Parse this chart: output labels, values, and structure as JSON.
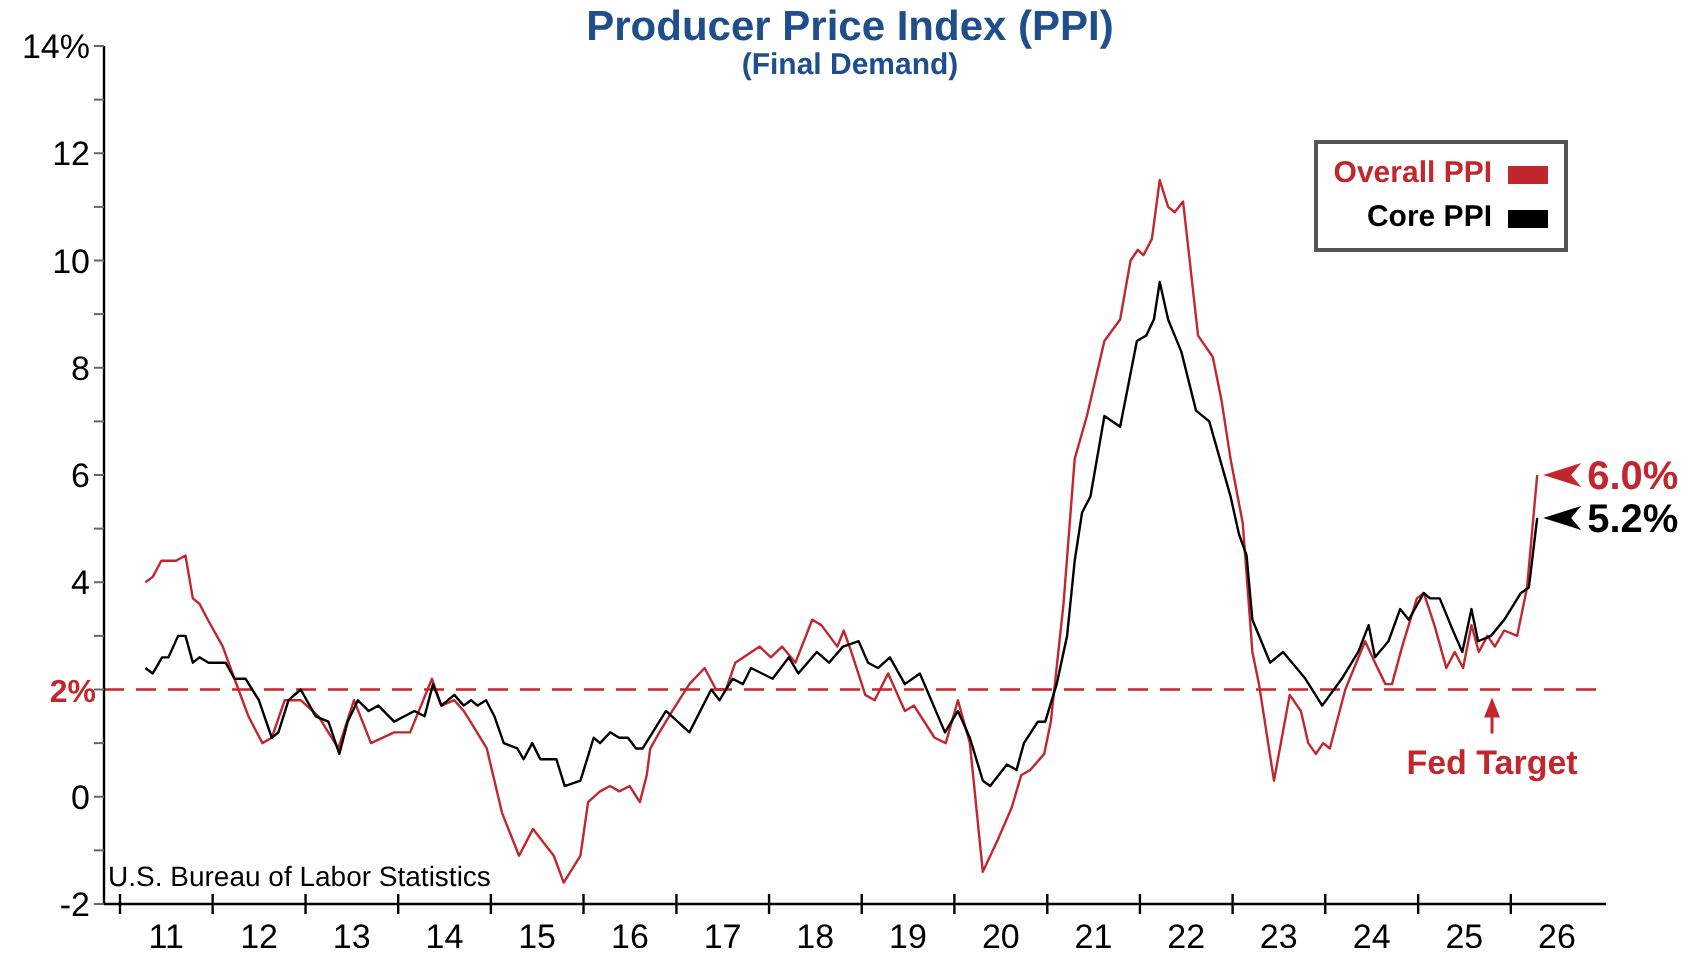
{
  "chart_data": {
    "type": "line",
    "title": "Producer Price Index (PPI)",
    "subtitle": "(Final Demand)",
    "xlim": [
      "2010-10-30",
      "2027-01-11"
    ],
    "xticks": [
      {
        "value": "2011-01-01",
        "label": null
      },
      {
        "value": "2011-07-02",
        "label": "11"
      },
      {
        "value": "2012-01-01",
        "label": null
      },
      {
        "value": "2012-07-02",
        "label": "12"
      },
      {
        "value": "2013-01-01",
        "label": null
      },
      {
        "value": "2013-07-02",
        "label": "13"
      },
      {
        "value": "2014-01-01",
        "label": null
      },
      {
        "value": "2014-07-02",
        "label": "14"
      },
      {
        "value": "2015-01-01",
        "label": null
      },
      {
        "value": "2015-07-02",
        "label": "15"
      },
      {
        "value": "2016-01-01",
        "label": null
      },
      {
        "value": "2016-07-02",
        "label": "16"
      },
      {
        "value": "2017-01-01",
        "label": null
      },
      {
        "value": "2017-07-02",
        "label": "17"
      },
      {
        "value": "2018-01-01",
        "label": null
      },
      {
        "value": "2018-07-02",
        "label": "18"
      },
      {
        "value": "2019-01-01",
        "label": null
      },
      {
        "value": "2019-07-02",
        "label": "19"
      },
      {
        "value": "2020-01-01",
        "label": null
      },
      {
        "value": "2020-07-02",
        "label": "20"
      },
      {
        "value": "2021-01-01",
        "label": null
      },
      {
        "value": "2021-07-02",
        "label": "21"
      },
      {
        "value": "2022-01-01",
        "label": null
      },
      {
        "value": "2022-07-02",
        "label": "22"
      },
      {
        "value": "2023-01-01",
        "label": null
      },
      {
        "value": "2023-07-02",
        "label": "23"
      },
      {
        "value": "2024-01-01",
        "label": null
      },
      {
        "value": "2024-07-02",
        "label": "24"
      },
      {
        "value": "2025-01-01",
        "label": null
      },
      {
        "value": "2025-07-02",
        "label": "25"
      },
      {
        "value": "2026-01-01",
        "label": null
      },
      {
        "value": "2026-07-02",
        "label": "26"
      }
    ],
    "ylim": [
      -2,
      14
    ],
    "yticks": [
      -2,
      {
        "value": -1,
        "label": null
      },
      0,
      {
        "value": 1,
        "label": null
      },
      {
        "value": 2,
        "label": null
      },
      {
        "value": 3,
        "label": null
      },
      4,
      {
        "value": 5,
        "label": null
      },
      6,
      {
        "value": 7,
        "label": null
      },
      8,
      {
        "value": 9,
        "label": null
      },
      10,
      {
        "value": 11,
        "label": null
      },
      12,
      {
        "value": 13,
        "label": null
      },
      {
        "value": 14,
        "label": "14%"
      }
    ],
    "marker": "none",
    "legend": "top right",
    "series": [
      {
        "name": "Overall PPI",
        "color": "#c1272d",
        "x": [
          "2011-04-11",
          "2011-05-10",
          "2011-06-13",
          "2011-08-10",
          "2011-09-16",
          "2011-10-15",
          "2011-11-10",
          "2011-12-13",
          "2012-02-10",
          "2012-03-27",
          "2012-05-21",
          "2012-07-15",
          "2012-08-21",
          "2012-10-11",
          "2012-12-13",
          "2013-02-21",
          "2013-05-10",
          "2013-07-11",
          "2013-09-16",
          "2013-12-16",
          "2014-02-17",
          "2014-05-14",
          "2014-06-20",
          "2014-08-10",
          "2014-09-16",
          "2014-10-26",
          "2014-12-16",
          "2015-02-14",
          "2015-04-22",
          "2015-06-16",
          "2015-09-06",
          "2015-10-15",
          "2015-12-20",
          "2016-01-19",
          "2016-03-06",
          "2016-04-15",
          "2016-05-21",
          "2016-07-01",
          "2016-08-10",
          "2016-09-06",
          "2016-09-20",
          "2016-10-26",
          "2016-12-16",
          "2017-02-21",
          "2017-04-22",
          "2017-06-06",
          "2017-07-15",
          "2017-08-21",
          "2017-11-25",
          "2018-01-08",
          "2018-02-21",
          "2018-04-15",
          "2018-06-20",
          "2018-07-26",
          "2018-09-27",
          "2018-10-22",
          "2018-11-21",
          "2019-01-15",
          "2019-02-21",
          "2019-04-15",
          "2019-06-20",
          "2019-07-26",
          "2019-10-15",
          "2019-11-28",
          "2020-01-15",
          "2020-03-02",
          "2020-04-22",
          "2020-06-20",
          "2020-08-14",
          "2020-09-20",
          "2020-10-26",
          "2020-12-20",
          "2021-01-15",
          "2021-03-06",
          "2021-04-19",
          "2021-06-06",
          "2021-08-14",
          "2021-10-15",
          "2021-11-25",
          "2021-12-24",
          "2022-01-15",
          "2022-02-17",
          "2022-03-20",
          "2022-04-22",
          "2022-05-18",
          "2022-06-20",
          "2022-08-18",
          "2022-10-15",
          "2022-11-18",
          "2022-12-24",
          "2023-02-10",
          "2023-03-20",
          "2023-04-15",
          "2023-06-13",
          "2023-08-14",
          "2023-09-27",
          "2023-10-26",
          "2023-11-25",
          "2023-12-24",
          "2024-01-19",
          "2024-03-20",
          "2024-06-06",
          "2024-07-15",
          "2024-08-25",
          "2024-09-20",
          "2024-10-30",
          "2024-12-27",
          "2025-01-23",
          "2025-03-06",
          "2025-04-22",
          "2025-05-25",
          "2025-06-27",
          "2025-07-30",
          "2025-08-28",
          "2025-10-01",
          "2025-10-30",
          "2025-12-06",
          "2026-01-26",
          "2026-03-06",
          "2026-04-15"
        ],
        "values": [
          4.0,
          4.1,
          4.4,
          4.4,
          4.5,
          3.7,
          3.6,
          3.3,
          2.8,
          2.2,
          1.5,
          1.0,
          1.1,
          1.8,
          1.8,
          1.5,
          0.9,
          1.8,
          1.0,
          1.2,
          1.2,
          2.2,
          1.7,
          1.8,
          1.6,
          1.3,
          0.9,
          -0.3,
          -1.1,
          -0.6,
          -1.1,
          -1.6,
          -1.1,
          -0.1,
          0.1,
          0.2,
          0.1,
          0.2,
          -0.1,
          0.4,
          0.9,
          1.2,
          1.6,
          2.1,
          2.4,
          2.0,
          2.0,
          2.5,
          2.8,
          2.6,
          2.8,
          2.5,
          3.3,
          3.2,
          2.8,
          3.1,
          2.7,
          1.9,
          1.8,
          2.3,
          1.6,
          1.7,
          1.1,
          1.0,
          1.8,
          1.0,
          -1.4,
          -0.8,
          -0.2,
          0.4,
          0.5,
          0.8,
          1.4,
          3.6,
          6.3,
          7.1,
          8.5,
          8.9,
          10.0,
          10.2,
          10.1,
          10.4,
          11.5,
          11.0,
          10.9,
          11.1,
          8.6,
          8.2,
          7.4,
          6.3,
          5.1,
          2.7,
          2.1,
          0.3,
          1.9,
          1.6,
          1.0,
          0.8,
          1.0,
          0.9,
          2.0,
          2.9,
          2.5,
          2.1,
          2.1,
          2.8,
          3.7,
          3.8,
          3.2,
          2.4,
          2.7,
          2.4,
          3.2,
          2.7,
          3.0,
          2.8,
          3.1,
          3.0,
          3.9,
          6.0
        ]
      },
      {
        "name": "Core PPI",
        "color": "#000000",
        "x": [
          "2011-04-11",
          "2011-05-10",
          "2011-06-16",
          "2011-07-11",
          "2011-08-18",
          "2011-09-16",
          "2011-10-15",
          "2011-11-10",
          "2011-12-16",
          "2012-02-21",
          "2012-03-27",
          "2012-05-10",
          "2012-07-01",
          "2012-08-21",
          "2012-09-16",
          "2012-10-26",
          "2012-12-13",
          "2013-02-10",
          "2013-04-01",
          "2013-05-14",
          "2013-06-16",
          "2013-07-26",
          "2013-09-06",
          "2013-10-15",
          "2013-12-16",
          "2014-03-06",
          "2014-04-15",
          "2014-05-18",
          "2014-06-20",
          "2014-08-10",
          "2014-09-16",
          "2014-10-15",
          "2014-11-10",
          "2014-12-13",
          "2015-01-15",
          "2015-02-21",
          "2015-04-15",
          "2015-05-10",
          "2015-06-13",
          "2015-07-15",
          "2015-09-16",
          "2015-10-19",
          "2015-12-20",
          "2016-02-10",
          "2016-03-06",
          "2016-04-15",
          "2016-05-21",
          "2016-06-24",
          "2016-07-26",
          "2016-08-21",
          "2016-11-21",
          "2017-02-21",
          "2017-05-18",
          "2017-06-20",
          "2017-08-10",
          "2017-09-20",
          "2017-10-22",
          "2018-01-15",
          "2018-03-20",
          "2018-04-26",
          "2018-07-08",
          "2018-08-25",
          "2018-10-19",
          "2018-12-20",
          "2019-01-26",
          "2019-03-06",
          "2019-04-22",
          "2019-06-20",
          "2019-08-18",
          "2019-11-25",
          "2020-01-15",
          "2020-03-02",
          "2020-04-22",
          "2020-05-21",
          "2020-07-26",
          "2020-09-02",
          "2020-10-01",
          "2020-11-25",
          "2020-12-24",
          "2021-02-07",
          "2021-03-20",
          "2021-04-19",
          "2021-05-18",
          "2021-06-20",
          "2021-08-14",
          "2021-10-15",
          "2021-12-20",
          "2022-01-26",
          "2022-02-25",
          "2022-03-20",
          "2022-04-22",
          "2022-06-13",
          "2022-08-10",
          "2022-10-01",
          "2022-12-24",
          "2023-01-26",
          "2023-02-25",
          "2023-03-20",
          "2023-05-29",
          "2023-07-19",
          "2023-10-15",
          "2023-12-20",
          "2024-03-06",
          "2024-05-10",
          "2024-06-20",
          "2024-07-15",
          "2024-09-06",
          "2024-10-22",
          "2024-11-25",
          "2025-01-23",
          "2025-02-17",
          "2025-03-27",
          "2025-05-18",
          "2025-06-24",
          "2025-07-30",
          "2025-08-25",
          "2025-10-15",
          "2025-12-06",
          "2026-02-10",
          "2026-03-13",
          "2026-04-15"
        ],
        "values": [
          2.4,
          2.3,
          2.6,
          2.6,
          3.0,
          3.0,
          2.5,
          2.6,
          2.5,
          2.5,
          2.2,
          2.2,
          1.8,
          1.1,
          1.2,
          1.8,
          2.0,
          1.5,
          1.4,
          0.8,
          1.4,
          1.8,
          1.6,
          1.7,
          1.4,
          1.6,
          1.5,
          2.1,
          1.7,
          1.9,
          1.7,
          1.8,
          1.7,
          1.8,
          1.5,
          1.0,
          0.9,
          0.7,
          1.0,
          0.7,
          0.7,
          0.2,
          0.3,
          1.1,
          1.0,
          1.2,
          1.1,
          1.1,
          0.9,
          0.9,
          1.6,
          1.2,
          2.0,
          1.8,
          2.2,
          2.1,
          2.4,
          2.2,
          2.6,
          2.3,
          2.7,
          2.5,
          2.8,
          2.9,
          2.5,
          2.4,
          2.6,
          2.1,
          2.3,
          1.2,
          1.6,
          1.1,
          0.3,
          0.2,
          0.6,
          0.5,
          1.0,
          1.4,
          1.4,
          2.1,
          3.0,
          4.4,
          5.3,
          5.6,
          7.1,
          6.9,
          8.5,
          8.6,
          8.9,
          9.6,
          8.9,
          8.3,
          7.2,
          7.0,
          5.6,
          4.9,
          4.5,
          3.3,
          2.5,
          2.7,
          2.2,
          1.7,
          2.2,
          2.7,
          3.2,
          2.6,
          2.9,
          3.5,
          3.3,
          3.8,
          3.7,
          3.7,
          3.1,
          2.7,
          3.5,
          2.9,
          3.0,
          3.3,
          3.8,
          3.9,
          5.2
        ]
      }
    ],
    "ref_lines": [
      {
        "axis": "y",
        "value": 2,
        "label": "2%",
        "color": "#c1272d",
        "line_style": "dashed"
      }
    ],
    "annotations": [
      {
        "text": "6.0%",
        "x": "2026-04-15",
        "y": 6.0
      },
      {
        "text": "5.2%",
        "x": "2026-04-15",
        "y": 5.2
      },
      {
        "text": "Fed Target",
        "x": "2025-10-19",
        "y": 2
      },
      "U.S. Bureau of Labor Statistics"
    ]
  }
}
